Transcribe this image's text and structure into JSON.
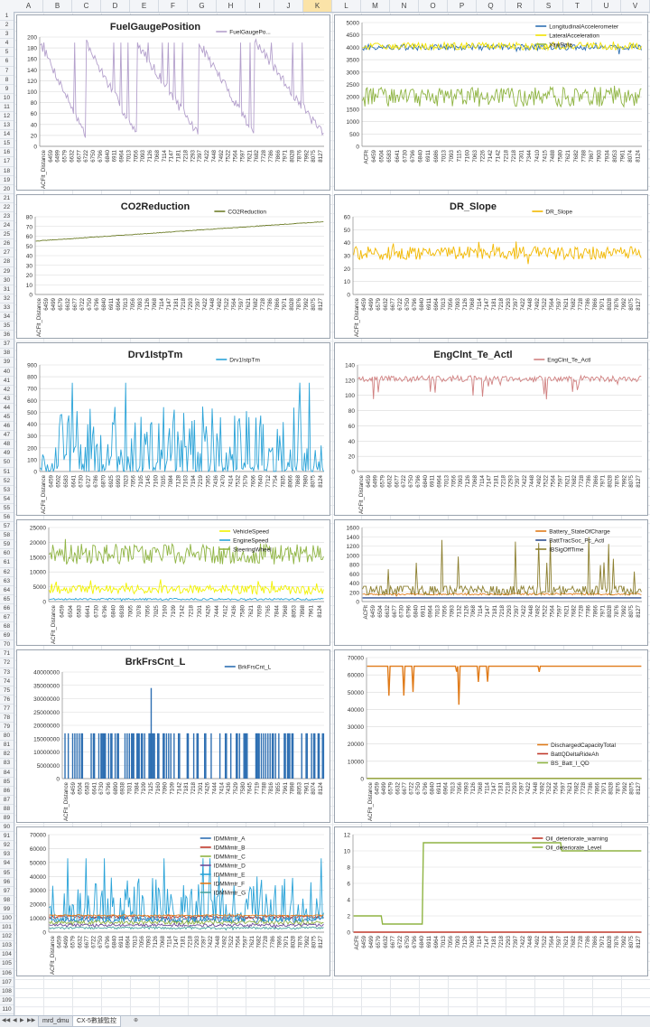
{
  "spreadsheet": {
    "columns": [
      "A",
      "B",
      "C",
      "D",
      "E",
      "F",
      "G",
      "H",
      "I",
      "J",
      "K",
      "L",
      "M",
      "N",
      "O",
      "P",
      "Q",
      "R",
      "S",
      "T",
      "U",
      "V"
    ],
    "selected_column": "K",
    "rows_visible": 120,
    "sheet_tabs": [
      "mrd_dmu",
      "CX-5數據監控"
    ],
    "active_tab": "CX-5數據監控"
  },
  "chart_data": [
    {
      "type": "line",
      "title": "FuelGaugePosition",
      "series": [
        {
          "name": "FuelGaugePo...",
          "color": "#b4a0cc",
          "pattern": "fuel"
        }
      ],
      "ylim": [
        0,
        200
      ],
      "yticks": [
        0,
        20,
        40,
        60,
        80,
        100,
        120,
        140,
        160,
        180,
        200
      ],
      "categories": [
        "ACFlt_Distance",
        "6459",
        "6499",
        "6579",
        "6632",
        "6677",
        "6722",
        "6750",
        "6796",
        "6840",
        "6911",
        "6964",
        "7013",
        "7056",
        "7093",
        "7126",
        "7068",
        "7114",
        "7147",
        "7181",
        "7218",
        "7293",
        "7397",
        "7422",
        "7448",
        "7492",
        "7522",
        "7564",
        "7597",
        "7621",
        "7682",
        "7728",
        "7786",
        "7866",
        "7971",
        "8028",
        "7876",
        "7992",
        "8075",
        "8127"
      ]
    },
    {
      "type": "line",
      "title": "",
      "series": [
        {
          "name": "LongitudinalAccelerometer",
          "color": "#2e6fb2",
          "pattern": "noise",
          "base": 4000,
          "amp": 120
        },
        {
          "name": "LateralAcceleration",
          "color": "#f2e200",
          "pattern": "noise",
          "base": 4050,
          "amp": 150
        },
        {
          "name": "YawRate",
          "color": "#8fb443",
          "pattern": "noise",
          "base": 2000,
          "amp": 400
        }
      ],
      "ylim": [
        0,
        5000
      ],
      "yticks": [
        0,
        500,
        1000,
        1500,
        2000,
        2500,
        3000,
        3500,
        4000,
        4500,
        5000
      ],
      "categories": [
        "ACFlt",
        "6459",
        "6504",
        "6583",
        "6641",
        "6730",
        "6796",
        "6840",
        "6911",
        "6986",
        "7013",
        "7093",
        "7115",
        "7160",
        "7063",
        "7226",
        "7142",
        "7142",
        "7218",
        "7218",
        "7301",
        "7344",
        "7410",
        "7415",
        "7488",
        "7580",
        "7621",
        "7682",
        "7788",
        "7867",
        "7903",
        "7934",
        "8053",
        "7961",
        "8074",
        "8124"
      ]
    },
    {
      "type": "line",
      "title": "CO2Reduction",
      "series": [
        {
          "name": "CO2Reduction",
          "color": "#6f7f2b",
          "pattern": "rise",
          "from": 55,
          "to": 75
        }
      ],
      "ylim": [
        0,
        80
      ],
      "yticks": [
        0,
        10,
        20,
        30,
        40,
        50,
        60,
        70,
        80
      ],
      "categories": [
        "ACFlt_Distance",
        "6459",
        "6499",
        "6579",
        "6632",
        "6677",
        "6722",
        "6750",
        "6796",
        "6840",
        "6911",
        "6964",
        "7013",
        "7056",
        "7093",
        "7126",
        "7068",
        "7114",
        "7147",
        "7181",
        "7218",
        "7293",
        "7397",
        "7422",
        "7448",
        "7492",
        "7522",
        "7564",
        "7597",
        "7621",
        "7682",
        "7728",
        "7786",
        "7866",
        "7971",
        "8028",
        "7876",
        "7992",
        "8075",
        "8127"
      ]
    },
    {
      "type": "line",
      "title": "DR_Slope",
      "series": [
        {
          "name": "DR_Slope",
          "color": "#f2b800",
          "pattern": "noise",
          "base": 32,
          "amp": 5
        }
      ],
      "ylim": [
        0,
        60
      ],
      "yticks": [
        0,
        10,
        20,
        30,
        40,
        50,
        60
      ],
      "categories": [
        "ACFlt_Distance",
        "6459",
        "6499",
        "6579",
        "6632",
        "6677",
        "6722",
        "6750",
        "6796",
        "6840",
        "6911",
        "6964",
        "7013",
        "7056",
        "7093",
        "7126",
        "7068",
        "7114",
        "7147",
        "7181",
        "7218",
        "7293",
        "7397",
        "7422",
        "7448",
        "7492",
        "7522",
        "7564",
        "7597",
        "7621",
        "7682",
        "7728",
        "7786",
        "7866",
        "7971",
        "8028",
        "7876",
        "7992",
        "8075",
        "8127"
      ]
    },
    {
      "type": "line",
      "title": "Drv1IstpTm",
      "series": [
        {
          "name": "Drv1IstpTm",
          "color": "#2aa3d8",
          "pattern": "spiky",
          "base": 0,
          "amp": 250
        }
      ],
      "ylim": [
        0,
        900
      ],
      "yticks": [
        0,
        100,
        200,
        300,
        400,
        500,
        600,
        700,
        800,
        900
      ],
      "categories": [
        "ACFlt_Distance",
        "6459",
        "6502",
        "6583",
        "6641",
        "6730",
        "6727",
        "6786",
        "6870",
        "6925",
        "6993",
        "7023",
        "7056",
        "7105",
        "7145",
        "7160",
        "7035",
        "7084",
        "7128",
        "7163",
        "7194",
        "7219",
        "7365",
        "7436",
        "7470",
        "7414",
        "7532",
        "7579",
        "7606",
        "7640",
        "7712",
        "7754",
        "7835",
        "8066",
        "7868",
        "7980",
        "8075",
        "8124"
      ]
    },
    {
      "type": "line",
      "title": "EngClnt_Te_Actl",
      "series": [
        {
          "name": "EngClnt_Te_Actl",
          "color": "#d08080",
          "pattern": "dips",
          "base": 122,
          "amp": 30
        }
      ],
      "ylim": [
        0,
        140
      ],
      "yticks": [
        0,
        20,
        40,
        60,
        80,
        100,
        120,
        140
      ],
      "categories": [
        "ACFlt_Distance",
        "6459",
        "6499",
        "6579",
        "6632",
        "6677",
        "6722",
        "6750",
        "6796",
        "6840",
        "6911",
        "6964",
        "7013",
        "7056",
        "7093",
        "7126",
        "7068",
        "7114",
        "7147",
        "7181",
        "7218",
        "7293",
        "7397",
        "7422",
        "7448",
        "7492",
        "7522",
        "7564",
        "7597",
        "7621",
        "7682",
        "7728",
        "7786",
        "7866",
        "7971",
        "8028",
        "7876",
        "7992",
        "8075",
        "8127"
      ]
    },
    {
      "type": "line",
      "title": "",
      "series": [
        {
          "name": "VehicleSpeed",
          "color": "#f2f200",
          "pattern": "band",
          "base": 2500,
          "amp": 3000
        },
        {
          "name": "EngineSpeed",
          "color": "#2aa3d8",
          "pattern": "noise",
          "base": 800,
          "amp": 300
        },
        {
          "name": "SteeringWheel",
          "color": "#8fb443",
          "pattern": "noise",
          "base": 16000,
          "amp": 3500
        }
      ],
      "ylim": [
        0,
        25000
      ],
      "yticks": [
        0,
        5000,
        10000,
        15000,
        20000,
        25000
      ],
      "categories": [
        "ACFlt_Distance",
        "6459",
        "6504",
        "6583",
        "6641",
        "6730",
        "6796",
        "6840",
        "6938",
        "7005",
        "7078",
        "7056",
        "7025",
        "7160",
        "7109",
        "7142",
        "7218",
        "7301",
        "7426",
        "7444",
        "7412",
        "7436",
        "7580",
        "7621",
        "7659",
        "7765",
        "7844",
        "7968",
        "8053",
        "7898",
        "7961",
        "8124"
      ]
    },
    {
      "type": "line",
      "title": "",
      "series": [
        {
          "name": "Battery_StateOfCharge",
          "color": "#e07b1a",
          "pattern": "noise",
          "base": 160,
          "amp": 20
        },
        {
          "name": "BattTracSoc_Pc_Actl",
          "color": "#2e4f8f",
          "pattern": "flat",
          "base": 80,
          "amp": 0
        },
        {
          "name": "IBSigOffTime",
          "color": "#8c7f2f",
          "pattern": "steps",
          "base": 150,
          "amp": 400
        }
      ],
      "ylim": [
        0,
        1600
      ],
      "yticks": [
        0,
        200,
        400,
        600,
        800,
        1000,
        1200,
        1400,
        1600
      ],
      "categories": [
        "ACFlt",
        "6459",
        "6504",
        "6632",
        "6677",
        "6730",
        "6796",
        "6840",
        "6911",
        "6964",
        "7013",
        "7056",
        "7093",
        "7132",
        "7126",
        "7068",
        "7114",
        "7147",
        "7181",
        "7218",
        "7293",
        "7397",
        "7422",
        "7448",
        "7492",
        "7522",
        "7564",
        "7597",
        "7621",
        "7682",
        "7728",
        "7786",
        "7866",
        "7971",
        "8028",
        "7876",
        "7992",
        "8075",
        "8127"
      ]
    },
    {
      "type": "bar",
      "title": "BrkFrsCnt_L",
      "series": [
        {
          "name": "BrkFrsCnt_L",
          "color": "#2e6fb2",
          "pattern": "bars",
          "base": 17000000,
          "amp": 0
        }
      ],
      "ylim": [
        0,
        40000000
      ],
      "yticks": [
        0,
        5000000,
        10000000,
        15000000,
        20000000,
        25000000,
        30000000,
        35000000,
        40000000
      ],
      "categories": [
        "ACFlt_Distance",
        "6459",
        "6504",
        "6583",
        "6641",
        "6730",
        "6796",
        "6890",
        "6938",
        "7031",
        "7084",
        "7109",
        "7125",
        "7160",
        "7090",
        "7109",
        "7142",
        "7181",
        "7218",
        "7301",
        "7426",
        "7444",
        "7414",
        "7436",
        "7529",
        "7580",
        "7645",
        "7719",
        "7788",
        "7816",
        "7855",
        "7961",
        "7898",
        "8053",
        "7961",
        "8074",
        "8124"
      ]
    },
    {
      "type": "line",
      "title": "",
      "series": [
        {
          "name": "DischargedCapacityTotal",
          "color": "#e07b1a",
          "pattern": "flat",
          "base": 65000,
          "amp": 0
        },
        {
          "name": "BattQDeltaRideAh",
          "color": "#c0392b",
          "pattern": "flat",
          "base": 100,
          "amp": 0
        },
        {
          "name": "BS_Batt_I_QD",
          "color": "#8fb443",
          "pattern": "flat",
          "base": 50,
          "amp": 0
        }
      ],
      "ylim": [
        0,
        70000
      ],
      "yticks": [
        0,
        10000,
        20000,
        30000,
        40000,
        50000,
        60000,
        70000
      ],
      "categories": [
        "ACFlt_Distance",
        "6459",
        "6499",
        "6579",
        "6632",
        "6677",
        "6722",
        "6750",
        "6796",
        "6840",
        "6911",
        "6964",
        "7013",
        "7056",
        "7093",
        "7126",
        "7068",
        "7114",
        "7147",
        "7181",
        "7218",
        "7293",
        "7397",
        "7422",
        "7448",
        "7492",
        "7522",
        "7564",
        "7597",
        "7621",
        "7682",
        "7728",
        "7786",
        "7866",
        "7971",
        "8028",
        "7876",
        "7992",
        "8075",
        "8127"
      ]
    },
    {
      "type": "line",
      "title": "",
      "series": [
        {
          "name": "IDMMmtr_A",
          "color": "#2e6fb2",
          "pattern": "noise",
          "base": 9000,
          "amp": 2000
        },
        {
          "name": "IDMMmtr_B",
          "color": "#c0392b",
          "pattern": "noise",
          "base": 11000,
          "amp": 1000
        },
        {
          "name": "IDMMmtr_C",
          "color": "#8fb443",
          "pattern": "noise",
          "base": 7000,
          "amp": 1500
        },
        {
          "name": "IDMMmtr_D",
          "color": "#6d4c9a",
          "pattern": "noise",
          "base": 5000,
          "amp": 1000
        },
        {
          "name": "IDMMmtr_E",
          "color": "#2aa3d8",
          "pattern": "spiky",
          "base": 8000,
          "amp": 15000
        },
        {
          "name": "IDMMmtr_F",
          "color": "#e07b1a",
          "pattern": "noise",
          "base": 12000,
          "amp": 500
        },
        {
          "name": "IDMMmtr_G",
          "color": "#4aa3a0",
          "pattern": "noise",
          "base": 3000,
          "amp": 800
        }
      ],
      "ylim": [
        0,
        70000
      ],
      "yticks": [
        0,
        10000,
        20000,
        30000,
        40000,
        50000,
        60000,
        70000
      ],
      "categories": [
        "ACFlt_Distance",
        "6459",
        "6499",
        "6579",
        "6632",
        "6677",
        "6722",
        "6750",
        "6796",
        "6840",
        "6911",
        "6964",
        "7013",
        "7056",
        "7093",
        "7126",
        "7068",
        "7114",
        "7147",
        "7181",
        "7218",
        "7293",
        "7397",
        "7422",
        "7448",
        "7492",
        "7522",
        "7564",
        "7597",
        "7621",
        "7682",
        "7728",
        "7786",
        "7866",
        "7971",
        "8028",
        "7876",
        "7992",
        "8075",
        "8127"
      ]
    },
    {
      "type": "line",
      "title": "",
      "series": [
        {
          "name": "Oil_deteriorate_warning",
          "color": "#c0392b",
          "pattern": "flat",
          "base": 0,
          "amp": 0
        },
        {
          "name": "Oil_deteriorate_Level",
          "color": "#8fb443",
          "pattern": "oil",
          "base": 0,
          "amp": 0
        }
      ],
      "ylim": [
        0,
        12
      ],
      "yticks": [
        0,
        2,
        4,
        6,
        8,
        10,
        12
      ],
      "categories": [
        "ACFlt",
        "6459",
        "6499",
        "6579",
        "6632",
        "6677",
        "6722",
        "6750",
        "6796",
        "6840",
        "6911",
        "6964",
        "7013",
        "7056",
        "7093",
        "7126",
        "7068",
        "7114",
        "7147",
        "7181",
        "7218",
        "7293",
        "7397",
        "7422",
        "7448",
        "7492",
        "7522",
        "7564",
        "7597",
        "7621",
        "7682",
        "7728",
        "7786",
        "7866",
        "7971",
        "8028",
        "7876",
        "7992",
        "8075",
        "8127"
      ]
    }
  ]
}
